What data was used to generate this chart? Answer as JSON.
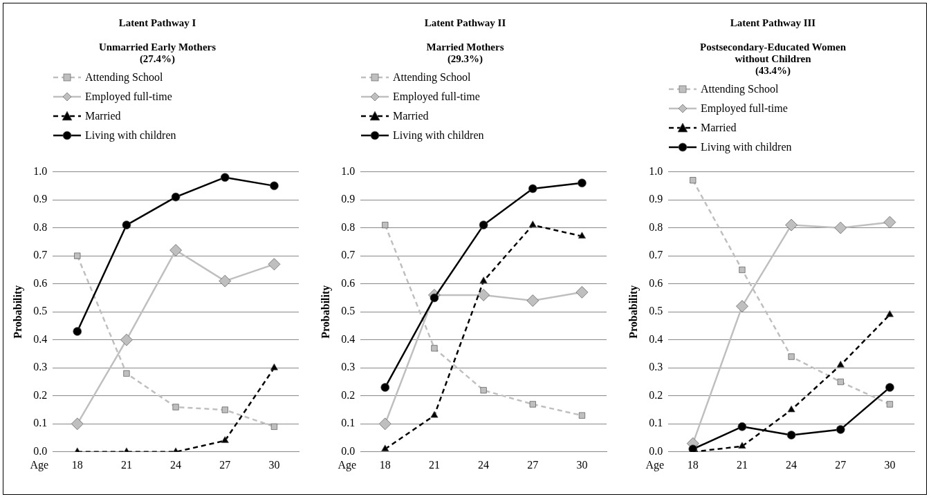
{
  "chart_data": [
    {
      "type": "line",
      "title": "Latent Pathway I",
      "subtitle": "Unmarried  Early Mothers\n(27.4%)",
      "xlabel": "Age",
      "ylabel": "Probability",
      "categories": [
        "18",
        "21",
        "24",
        "27",
        "30"
      ],
      "ylim": [
        0,
        1
      ],
      "yticks": [
        {
          "value": 0,
          "label": "0.0"
        },
        {
          "value": 0.1,
          "label": "0.1"
        },
        {
          "value": 0.2,
          "label": "0.2"
        },
        {
          "value": 0.3,
          "label": "0.3"
        },
        {
          "value": 0.4,
          "label": "0.4"
        },
        {
          "value": 0.5,
          "label": "0.5"
        },
        {
          "value": 0.6,
          "label": "0.6"
        },
        {
          "value": 0.7,
          "label": "0.7"
        },
        {
          "value": 0.8,
          "label": "0.8"
        },
        {
          "value": 0.9,
          "label": "0.9"
        },
        {
          "value": 1,
          "label": "1.0"
        }
      ],
      "grid": "y",
      "legend": "top",
      "series": [
        {
          "name": "Attending School",
          "color": "#bfbfbf",
          "marker": "square",
          "line_style": "dashed",
          "values": [
            0.7,
            0.28,
            0.16,
            0.15,
            0.09
          ]
        },
        {
          "name": "Employed full-time",
          "color": "#bfbfbf",
          "marker": "diamond",
          "line_style": "solid",
          "values": [
            0.1,
            0.4,
            0.72,
            0.61,
            0.67
          ]
        },
        {
          "name": "Married",
          "color": "#000000",
          "marker": "triangle",
          "line_style": "dashed",
          "values": [
            0.0,
            0.0,
            0.0,
            0.04,
            0.3
          ]
        },
        {
          "name": "Living with children",
          "color": "#000000",
          "marker": "circle",
          "line_style": "solid",
          "values": [
            0.43,
            0.81,
            0.91,
            0.98,
            0.95
          ]
        }
      ]
    },
    {
      "type": "line",
      "title": "Latent Pathway II",
      "subtitle": "Married Mothers\n(29.3%)",
      "xlabel": "Age",
      "ylabel": "Probability",
      "categories": [
        "18",
        "21",
        "24",
        "27",
        "30"
      ],
      "ylim": [
        0,
        1
      ],
      "yticks": [
        {
          "value": 0,
          "label": "0.0"
        },
        {
          "value": 0.1,
          "label": "0.1"
        },
        {
          "value": 0.2,
          "label": "0.2"
        },
        {
          "value": 0.3,
          "label": "0.3"
        },
        {
          "value": 0.4,
          "label": "0.4"
        },
        {
          "value": 0.5,
          "label": "0.5"
        },
        {
          "value": 0.6,
          "label": "0.6"
        },
        {
          "value": 0.7,
          "label": "0.7"
        },
        {
          "value": 0.8,
          "label": "0.8"
        },
        {
          "value": 0.9,
          "label": "0.9"
        },
        {
          "value": 1,
          "label": "1.0"
        }
      ],
      "grid": "y",
      "legend": "top",
      "series": [
        {
          "name": "Attending School",
          "color": "#bfbfbf",
          "marker": "square",
          "line_style": "dashed",
          "values": [
            0.81,
            0.37,
            0.22,
            0.17,
            0.13
          ]
        },
        {
          "name": "Employed full-time",
          "color": "#bfbfbf",
          "marker": "diamond",
          "line_style": "solid",
          "values": [
            0.1,
            0.56,
            0.56,
            0.54,
            0.57
          ]
        },
        {
          "name": "Married",
          "color": "#000000",
          "marker": "triangle",
          "line_style": "dashed",
          "values": [
            0.01,
            0.13,
            0.61,
            0.81,
            0.77
          ]
        },
        {
          "name": "Living with children",
          "color": "#000000",
          "marker": "circle",
          "line_style": "solid",
          "values": [
            0.23,
            0.55,
            0.81,
            0.94,
            0.96
          ]
        }
      ]
    },
    {
      "type": "line",
      "title": "Latent Pathway III",
      "subtitle": "Postsecondary-Educated Women\nwithout Children\n(43.4%)",
      "xlabel": "Age",
      "ylabel": "Probability",
      "categories": [
        "18",
        "21",
        "24",
        "27",
        "30"
      ],
      "ylim": [
        0,
        1
      ],
      "yticks": [
        {
          "value": 0,
          "label": "0.0"
        },
        {
          "value": 0.1,
          "label": "0.1"
        },
        {
          "value": 0.2,
          "label": "0.2"
        },
        {
          "value": 0.3,
          "label": "0.3"
        },
        {
          "value": 0.4,
          "label": "0.4"
        },
        {
          "value": 0.5,
          "label": "0.5"
        },
        {
          "value": 0.6,
          "label": "0.6"
        },
        {
          "value": 0.7,
          "label": "0.7"
        },
        {
          "value": 0.8,
          "label": "0.8"
        },
        {
          "value": 0.9,
          "label": "0.9"
        },
        {
          "value": 1,
          "label": "1.0"
        }
      ],
      "grid": "y",
      "legend": "top",
      "series": [
        {
          "name": "Attending School",
          "color": "#bfbfbf",
          "marker": "square",
          "line_style": "dashed",
          "values": [
            0.97,
            0.65,
            0.34,
            0.25,
            0.17
          ]
        },
        {
          "name": "Employed full-time",
          "color": "#bfbfbf",
          "marker": "diamond",
          "line_style": "solid",
          "values": [
            0.03,
            0.52,
            0.81,
            0.8,
            0.82
          ]
        },
        {
          "name": "Married",
          "color": "#000000",
          "marker": "triangle",
          "line_style": "dashed",
          "values": [
            0.0,
            0.02,
            0.15,
            0.31,
            0.49
          ]
        },
        {
          "name": "Living with children",
          "color": "#000000",
          "marker": "circle",
          "line_style": "solid",
          "values": [
            0.01,
            0.09,
            0.06,
            0.08,
            0.23
          ]
        }
      ]
    }
  ]
}
